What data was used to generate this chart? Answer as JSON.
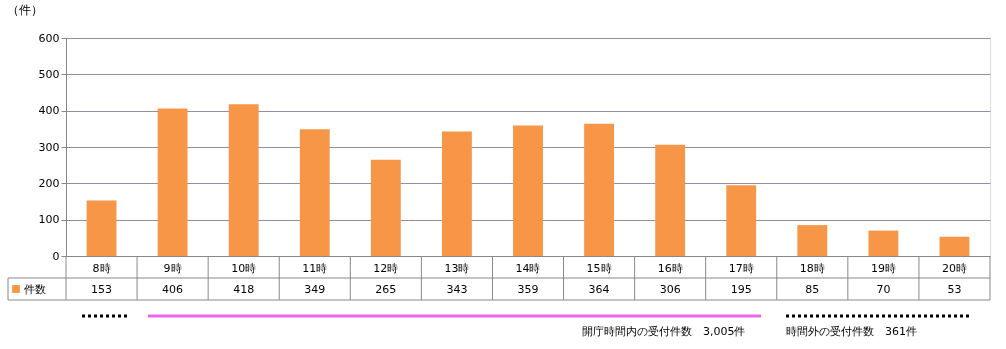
{
  "chart_data": {
    "type": "bar",
    "ylabel": "（件）",
    "categories": [
      "8時",
      "9時",
      "10時",
      "11時",
      "12時",
      "13時",
      "14時",
      "15時",
      "16時",
      "17時",
      "18時",
      "19時",
      "20時"
    ],
    "series": [
      {
        "name": "件数",
        "color": "#f79646",
        "values": [
          153,
          406,
          418,
          349,
          265,
          343,
          359,
          364,
          306,
          195,
          85,
          70,
          53
        ]
      }
    ],
    "ylim": [
      0,
      600
    ],
    "yticks": [
      0,
      100,
      200,
      300,
      400,
      500,
      600
    ],
    "grid": "y",
    "data_labels": true,
    "legend": "bottom left",
    "annotations": [
      "開庁時間内の受付件数　3,005件",
      "時間外の受付件数　361件"
    ]
  }
}
